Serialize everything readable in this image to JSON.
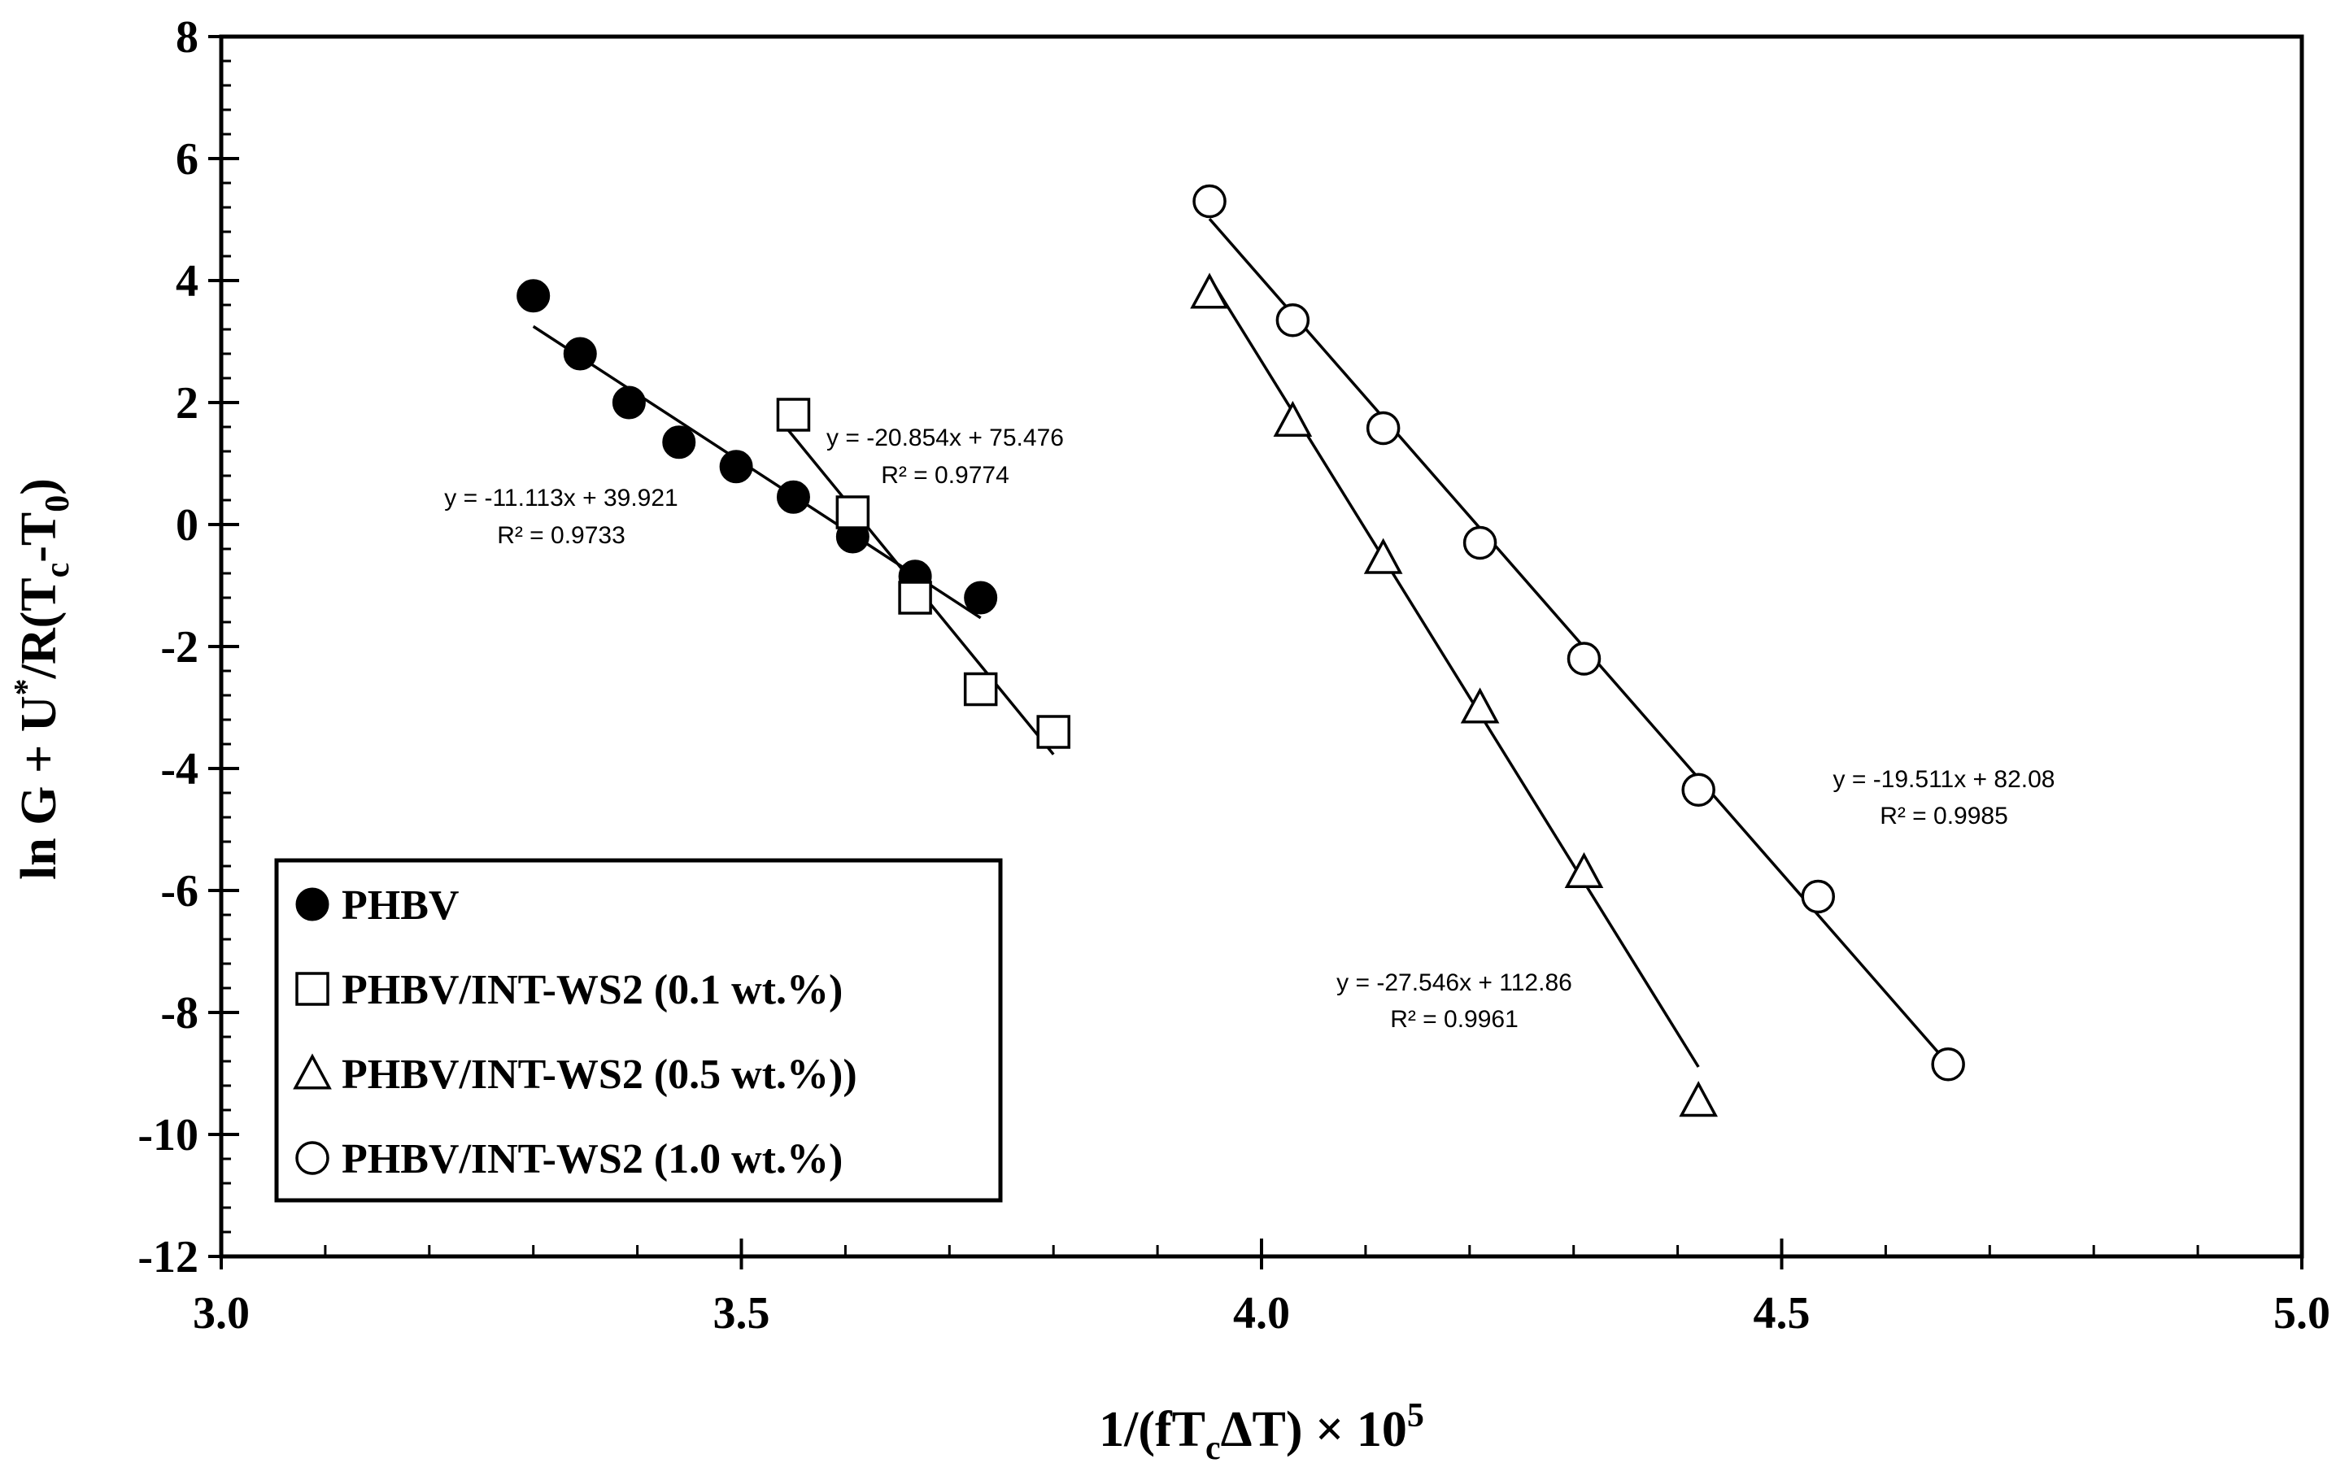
{
  "chart_data": {
    "type": "scatter",
    "title": "",
    "xlabel": "1/(fT_cΔT) × 10^5",
    "ylabel": "ln G + U*/R(T_c-T_0)",
    "xlim": [
      3.0,
      5.0
    ],
    "ylim": [
      -12,
      8
    ],
    "x_ticks": [
      3.0,
      3.5,
      4.0,
      4.5,
      5.0
    ],
    "x_tick_labels": [
      "3.0",
      "3.5",
      "4.0",
      "4.5",
      "5.0"
    ],
    "y_ticks": [
      -12,
      -10,
      -8,
      -6,
      -4,
      -2,
      0,
      2,
      4,
      6,
      8
    ],
    "y_tick_labels": [
      "-12",
      "-10",
      "-8",
      "-6",
      "-4",
      "-2",
      "0",
      "2",
      "4",
      "6",
      "8"
    ],
    "grid": false,
    "legend_position": "bottom-left",
    "series": [
      {
        "name": "PHBV",
        "marker": "filled-circle",
        "x": [
          3.3,
          3.345,
          3.392,
          3.44,
          3.495,
          3.55,
          3.607,
          3.667,
          3.73
        ],
        "y": [
          3.75,
          2.8,
          2.0,
          1.35,
          0.95,
          0.45,
          -0.2,
          -0.85,
          -1.2
        ],
        "fit": {
          "slope": -11.113,
          "intercept": 39.921,
          "x_range": [
            3.3,
            3.73
          ],
          "equation": "y = -11.113x + 39.921",
          "r2": "R² = 0.9733"
        }
      },
      {
        "name": "PHBV/INT-WS2 (0.1 wt.%)",
        "marker": "open-square",
        "x": [
          3.55,
          3.607,
          3.667,
          3.73,
          3.8
        ],
        "y": [
          1.8,
          0.2,
          -1.2,
          -2.7,
          -3.4
        ],
        "fit": {
          "slope": -20.854,
          "intercept": 75.476,
          "x_range": [
            3.54,
            3.8
          ],
          "equation": "y = -20.854x + 75.476",
          "r2": "R² = 0.9774"
        }
      },
      {
        "name": "PHBV/INT-WS2 (0.5 wt.%))",
        "marker": "open-triangle",
        "x": [
          3.95,
          4.03,
          4.117,
          4.21,
          4.31,
          4.42
        ],
        "y": [
          3.8,
          1.7,
          -0.55,
          -3.0,
          -5.7,
          -9.45
        ],
        "fit": {
          "slope": -27.546,
          "intercept": 112.86,
          "x_range": [
            3.95,
            4.42
          ],
          "equation": "y = -27.546x + 112.86",
          "r2": "R² = 0.9961"
        }
      },
      {
        "name": "PHBV/INT-WS2 (1.0 wt.%)",
        "marker": "open-circle",
        "x": [
          3.95,
          4.03,
          4.117,
          4.21,
          4.31,
          4.42,
          4.535,
          4.66
        ],
        "y": [
          5.3,
          3.35,
          1.58,
          -0.3,
          -2.2,
          -4.35,
          -6.1,
          -8.85
        ],
        "fit": {
          "slope": -19.511,
          "intercept": 82.08,
          "x_range": [
            3.95,
            4.66
          ],
          "equation": "y = -19.511x + 82.08",
          "r2": "R² = 0.9985"
        }
      }
    ]
  }
}
